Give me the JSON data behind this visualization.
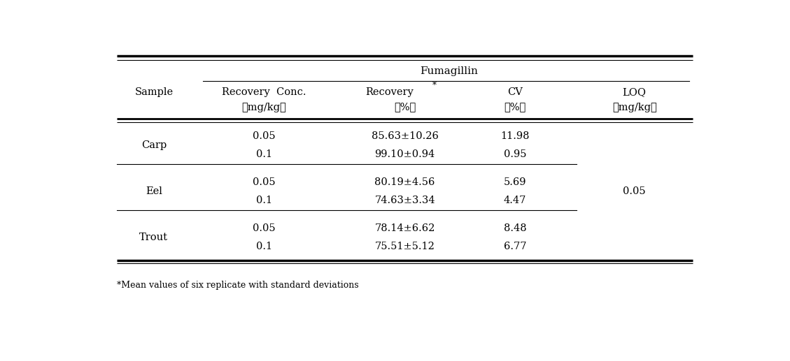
{
  "title": "Fumagillin",
  "footnote": "*Mean values of six replicate with standard deviations",
  "samples": [
    {
      "name": "Carp",
      "rows": [
        [
          "0.05",
          "85.63±10.26",
          "11.98"
        ],
        [
          "0.1",
          "99.10±0.94",
          "0.95"
        ]
      ]
    },
    {
      "name": "Eel",
      "rows": [
        [
          "0.05",
          "80.19±4.56",
          "5.69"
        ],
        [
          "0.1",
          "74.63±3.34",
          "4.47"
        ]
      ]
    },
    {
      "name": "Trout",
      "rows": [
        [
          "0.05",
          "78.14±6.62",
          "8.48"
        ],
        [
          "0.1",
          "75.51±5.12",
          "6.77"
        ]
      ]
    }
  ],
  "loq_value": "0.05",
  "bg_color": "#ffffff",
  "text_color": "#000000",
  "font_size": 10.5,
  "footnote_font_size": 9.0
}
